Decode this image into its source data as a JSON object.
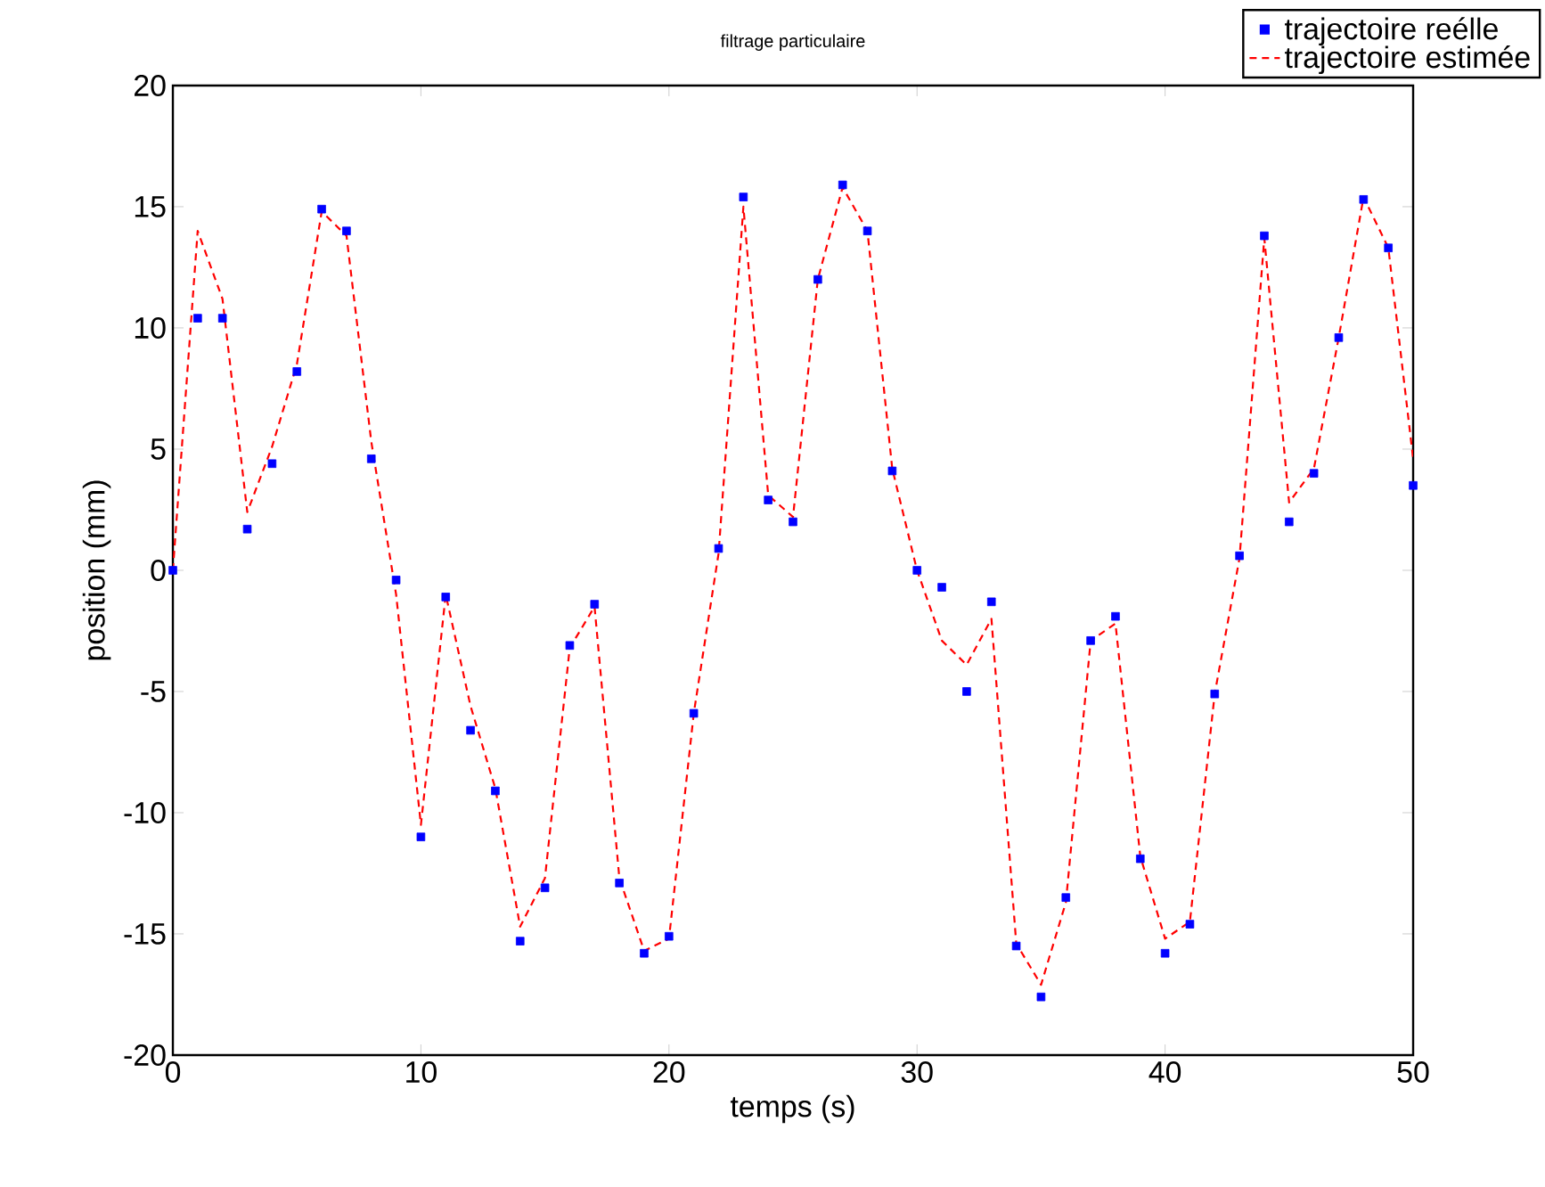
{
  "chart_data": {
    "type": "line",
    "title": "filtrage particulaire",
    "xlabel": "temps (s)",
    "ylabel": "position (mm)",
    "x": [
      0,
      1,
      2,
      3,
      4,
      5,
      6,
      7,
      8,
      9,
      10,
      11,
      12,
      13,
      14,
      15,
      16,
      17,
      18,
      19,
      20,
      21,
      22,
      23,
      24,
      25,
      26,
      27,
      28,
      29,
      30,
      31,
      32,
      33,
      34,
      35,
      36,
      37,
      38,
      39,
      40,
      41,
      42,
      43,
      44,
      45,
      46,
      47,
      48,
      49,
      50
    ],
    "series": [
      {
        "name": "trajectoire reélle",
        "type": "scatter",
        "marker": "square",
        "color": "#0000ff",
        "values": [
          0,
          10.4,
          10.4,
          1.7,
          4.4,
          8.2,
          14.9,
          14.0,
          4.6,
          -0.4,
          -11.0,
          -1.1,
          -6.6,
          -9.1,
          -15.3,
          -13.1,
          -3.1,
          -1.4,
          -12.9,
          -15.8,
          -15.1,
          -5.9,
          0.9,
          15.4,
          2.9,
          2.0,
          12.0,
          15.9,
          14.0,
          4.1,
          0,
          -0.7,
          -5.0,
          -1.3,
          -15.5,
          -17.6,
          -13.5,
          -2.9,
          -1.9,
          -11.9,
          -15.8,
          -14.6,
          -5.1,
          0.6,
          13.8,
          2.0,
          4.0,
          9.6,
          15.3,
          13.3,
          3.5
        ]
      },
      {
        "name": "trajectoire estimée",
        "marker": "none",
        "line_style": "dashed",
        "color": "#ff0000",
        "values": [
          0,
          14.0,
          11.2,
          2.4,
          5.1,
          8.5,
          14.8,
          13.8,
          5.3,
          -1.0,
          -10.5,
          -1.0,
          -5.6,
          -9.0,
          -14.7,
          -12.7,
          -3.2,
          -1.5,
          -12.7,
          -15.7,
          -15.2,
          -5.9,
          0.7,
          15.0,
          3.1,
          2.2,
          12.0,
          15.8,
          14.0,
          4.2,
          0,
          -2.9,
          -3.9,
          -2.0,
          -15.4,
          -17.1,
          -13.7,
          -2.9,
          -2.2,
          -11.8,
          -15.2,
          -14.5,
          -5.1,
          0.5,
          13.7,
          2.8,
          4.2,
          9.6,
          15.4,
          13.3,
          4.6
        ]
      }
    ],
    "xlim": [
      0,
      50
    ],
    "ylim": [
      -20,
      20
    ],
    "xticks": [
      0,
      10,
      20,
      30,
      40,
      50
    ],
    "yticks": [
      -20,
      -15,
      -10,
      -5,
      0,
      5,
      10,
      15,
      20
    ],
    "grid": false,
    "legend": "top right"
  }
}
